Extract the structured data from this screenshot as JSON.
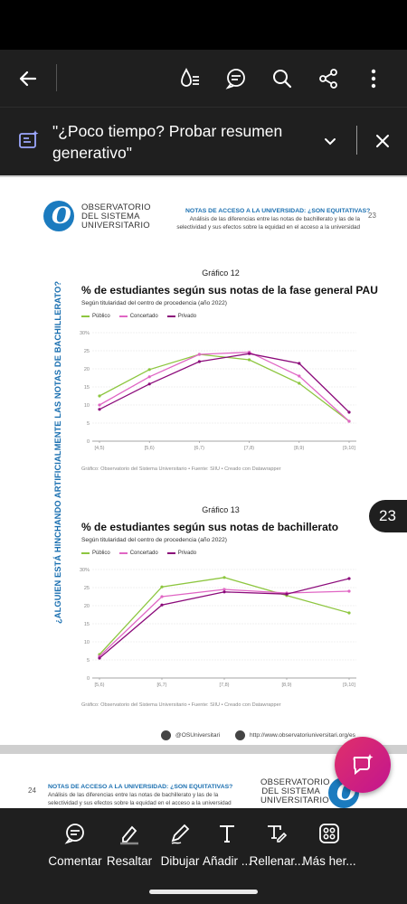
{
  "topbar": {
    "back_icon": "arrow-left-icon",
    "icons": [
      "read-aloud-icon",
      "comment-icon",
      "search-icon",
      "share-icon",
      "more-vert-icon"
    ]
  },
  "ai_bar": {
    "text": "\"¿Poco tiempo? Probar resumen generativo\"",
    "icon": "ai-summary-icon"
  },
  "page": {
    "logo_text": [
      "OBSERVATORIO",
      "DEL SISTEMA",
      "UNIVERSITARIO"
    ],
    "header_title": "NOTAS DE ACCESO A LA UNIVERSIDAD: ¿SON EQUITATIVAS?",
    "header_sub_1": "Análisis de las diferencias entre las notas de bachillerato y las de la",
    "header_sub_2": "selectividad y sus efectos sobre la equidad en el acceso a la universidad",
    "page_number": "23",
    "side_title": "¿ALGUIEN ESTÁ HINCHANDO ARTIFICIALMENTE LAS NOTAS DE BACHILLERATO?",
    "footer_twitter": "@OSUniversitari",
    "footer_web": "http://www.observatoriuniversitari.org/es"
  },
  "page2": {
    "page_number": "24",
    "header_title": "NOTAS DE ACCESO A LA UNIVERSIDAD: ¿SON EQUITATIVAS?",
    "header_sub_1": "Análisis de las diferencias entre las notas de bachillerato y las de la",
    "header_sub_2": "selectividad y sus efectos sobre la equidad en el acceso a la universidad",
    "logo_text": [
      "OBSERVATORIO",
      "DEL SISTEMA",
      "UNIVERSITARIO"
    ]
  },
  "page_badge": "23",
  "colors": {
    "publico": "#8dc63f",
    "concertado": "#e066c4",
    "privado": "#8b0a7a",
    "accent": "#1a6fb0"
  },
  "chart_data": [
    {
      "type": "line",
      "number": "Gráfico 12",
      "title": "% de estudiantes según sus notas de la fase general PAU",
      "subtitle": "Según titularidad del centro de procedencia (año 2022)",
      "credit": "Gráfico: Observatorio del Sistema Universitario • Fuente: SIIU • Creado con Datawrapper",
      "categories": [
        "[4,5)",
        "[5,6)",
        "[6,7)",
        "[7,8)",
        "[8,9)",
        "[9,10]"
      ],
      "yticks": [
        "0",
        "5",
        "10",
        "15",
        "20",
        "25",
        "30%"
      ],
      "ylim": [
        0,
        30
      ],
      "series": [
        {
          "name": "Público",
          "color": "#8dc63f",
          "values": [
            12.5,
            19.8,
            24.0,
            22.5,
            16.0,
            5.5
          ]
        },
        {
          "name": "Concertado",
          "color": "#e066c4",
          "values": [
            10.0,
            17.8,
            24.0,
            24.6,
            18.0,
            5.5
          ]
        },
        {
          "name": "Privado",
          "color": "#8b0a7a",
          "values": [
            8.8,
            15.8,
            22.0,
            24.2,
            21.5,
            8.0
          ]
        }
      ]
    },
    {
      "type": "line",
      "number": "Gráfico 13",
      "title": "% de estudiantes según sus notas de bachillerato",
      "subtitle": "Según titularidad del centro de procedencia (año 2022)",
      "credit": "Gráfico: Observatorio del Sistema Universitario • Fuente: SIIU • Creado con Datawrapper",
      "categories": [
        "[5,6)",
        "[6,7)",
        "[7,8)",
        "[8,9)",
        "[9,10]"
      ],
      "yticks": [
        "0",
        "5",
        "10",
        "15",
        "20",
        "25",
        "30%"
      ],
      "ylim": [
        0,
        30
      ],
      "series": [
        {
          "name": "Público",
          "color": "#8dc63f",
          "values": [
            6.5,
            25.2,
            27.8,
            22.8,
            18.0
          ]
        },
        {
          "name": "Concertado",
          "color": "#e066c4",
          "values": [
            6.0,
            22.5,
            24.5,
            23.5,
            24.0
          ]
        },
        {
          "name": "Privado",
          "color": "#8b0a7a",
          "values": [
            5.5,
            20.2,
            23.8,
            23.2,
            27.5
          ]
        }
      ]
    }
  ],
  "toolbar": {
    "items": [
      {
        "label": "Comentar",
        "icon": "comment-icon"
      },
      {
        "label": "Resaltar",
        "icon": "highlighter-icon"
      },
      {
        "label": "Dibujar",
        "icon": "draw-icon"
      },
      {
        "label": "Añadir ...",
        "icon": "add-text-icon"
      },
      {
        "label": "Rellenar...",
        "icon": "fill-sign-icon"
      },
      {
        "label": "Más her...",
        "icon": "more-tools-icon"
      }
    ]
  }
}
